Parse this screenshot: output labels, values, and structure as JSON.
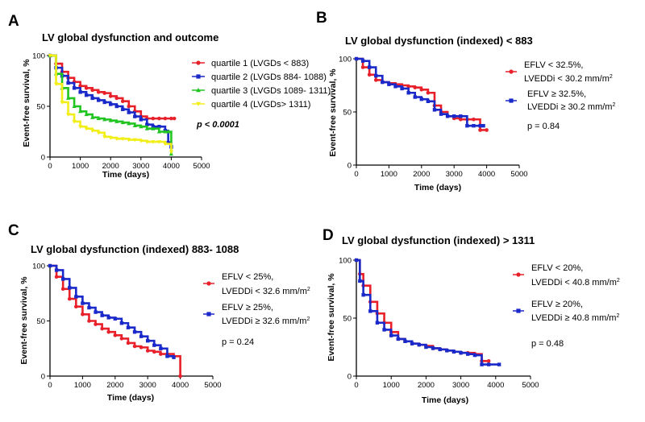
{
  "figure": {
    "panel_count": 4
  },
  "chart_data": [
    {
      "type": "line",
      "panel_letter": "A",
      "title": "LV global dysfunction and outcome",
      "xlabel": "Time (days)",
      "ylabel": "Event-free survival, %",
      "xlim": [
        0,
        5000
      ],
      "ylim": [
        0,
        100
      ],
      "x_ticks": [
        0,
        1000,
        2000,
        3000,
        4000,
        5000
      ],
      "y_ticks": [
        0,
        50,
        100
      ],
      "y_tick_labels": [
        "0",
        "50",
        "100"
      ],
      "p_value": "p < 0.0001",
      "p_value_style": "bold-italic",
      "legend": "right",
      "series": [
        {
          "name": "quartile 1 (LVGDs < 883)",
          "color": "#e8202a",
          "marker": "circle",
          "x": [
            0,
            200,
            400,
            600,
            800,
            1000,
            1200,
            1400,
            1600,
            1800,
            2000,
            2200,
            2400,
            2600,
            2800,
            3000,
            3200,
            3400,
            3600,
            3800,
            4000,
            4100
          ],
          "y": [
            100,
            92,
            84,
            78,
            74,
            70,
            68,
            66,
            64,
            63,
            60,
            58,
            55,
            50,
            45,
            40,
            38,
            38,
            38,
            38,
            38,
            38
          ]
        },
        {
          "name": "quartile 2 (LVGDs 884- 1088)",
          "color": "#1a29c9",
          "marker": "square",
          "x": [
            0,
            200,
            400,
            600,
            800,
            1000,
            1200,
            1400,
            1600,
            1800,
            2000,
            2200,
            2400,
            2600,
            2800,
            3000,
            3200,
            3400,
            3600,
            3800,
            3900,
            4000
          ],
          "y": [
            100,
            88,
            80,
            73,
            68,
            64,
            61,
            58,
            56,
            54,
            52,
            50,
            47,
            44,
            40,
            37,
            32,
            30,
            30,
            26,
            14,
            10
          ]
        },
        {
          "name": "quartile 3 (LVGDs 1089- 1311)",
          "color": "#22c422",
          "marker": "triangle",
          "x": [
            0,
            200,
            400,
            600,
            800,
            1000,
            1200,
            1400,
            1600,
            1800,
            2000,
            2200,
            2400,
            2600,
            2800,
            3000,
            3200,
            3400,
            3600,
            3800,
            3900,
            4000
          ],
          "y": [
            100,
            82,
            68,
            58,
            50,
            45,
            42,
            39,
            38,
            37,
            36,
            35,
            34,
            33,
            31,
            30,
            28,
            28,
            25,
            25,
            25,
            3
          ]
        },
        {
          "name": "quartile 4 (LVGDs> 1311)",
          "color": "#f2ee1a",
          "marker": "triangle-down",
          "x": [
            0,
            200,
            400,
            600,
            800,
            1000,
            1200,
            1400,
            1600,
            1800,
            2000,
            2200,
            2400,
            2600,
            2800,
            3000,
            3200,
            3400,
            3600,
            3800,
            4000
          ],
          "y": [
            100,
            72,
            54,
            42,
            35,
            30,
            28,
            26,
            24,
            20,
            19,
            18,
            18,
            17,
            17,
            16,
            15,
            15,
            15,
            13,
            5
          ]
        }
      ]
    },
    {
      "type": "line",
      "panel_letter": "B",
      "title": "LV global dysfunction (indexed) < 883",
      "xlabel": "Time (days)",
      "ylabel": "Event-free survival, %",
      "xlim": [
        0,
        5000
      ],
      "ylim": [
        0,
        100
      ],
      "x_ticks": [
        0,
        1000,
        2000,
        3000,
        4000,
        5000
      ],
      "y_ticks": [
        0,
        50,
        100
      ],
      "y_tick_labels": [
        "0",
        "50",
        "100"
      ],
      "p_value": "p = 0.84",
      "p_value_style": "normal",
      "legend": "right",
      "series": [
        {
          "name": "EFLV < 32.5%,",
          "name_line2": "LVEDDi < 30.2 mm/m",
          "name_sup": "2",
          "color": "#e8202a",
          "marker": "circle",
          "x": [
            0,
            200,
            400,
            600,
            800,
            1000,
            1200,
            1400,
            1600,
            1800,
            2000,
            2200,
            2400,
            2600,
            2800,
            3000,
            3200,
            3400,
            3600,
            3800,
            4000
          ],
          "y": [
            100,
            92,
            85,
            80,
            78,
            77,
            76,
            75,
            74,
            73,
            71,
            68,
            56,
            50,
            46,
            44,
            43,
            43,
            43,
            33,
            33
          ]
        },
        {
          "name": "EFLV ≥ 32.5%,",
          "name_line2": "LVEDDi ≥ 30.2 mm/m",
          "name_sup": "2",
          "color": "#1a29c9",
          "marker": "square",
          "x": [
            0,
            200,
            400,
            600,
            800,
            1000,
            1200,
            1400,
            1600,
            1800,
            2000,
            2200,
            2400,
            2600,
            2800,
            3000,
            3200,
            3400,
            3600,
            3800,
            3900
          ],
          "y": [
            100,
            98,
            92,
            84,
            78,
            76,
            74,
            72,
            68,
            64,
            62,
            60,
            52,
            48,
            46,
            46,
            46,
            37,
            37,
            37,
            37
          ]
        }
      ]
    },
    {
      "type": "line",
      "panel_letter": "C",
      "title": "LV global dysfunction (indexed)  883- 1088",
      "xlabel": "Time (days)",
      "ylabel": "Event-free survival, %",
      "xlim": [
        0,
        5000
      ],
      "ylim": [
        0,
        100
      ],
      "x_ticks": [
        0,
        1000,
        2000,
        3000,
        4000,
        5000
      ],
      "y_ticks": [
        0,
        50,
        100
      ],
      "y_tick_labels": [
        "0",
        "50",
        "100"
      ],
      "p_value": "p = 0.24",
      "p_value_style": "normal",
      "legend": "right",
      "series": [
        {
          "name": "EFLV < 25%,",
          "name_line2": "LVEDDi < 32.6 mm/m",
          "name_sup": "2",
          "color": "#e8202a",
          "marker": "circle",
          "x": [
            0,
            200,
            400,
            600,
            800,
            1000,
            1200,
            1400,
            1600,
            1800,
            2000,
            2200,
            2400,
            2600,
            2800,
            3000,
            3200,
            3400,
            3600,
            3800,
            4000
          ],
          "y": [
            100,
            90,
            79,
            70,
            63,
            56,
            50,
            47,
            43,
            40,
            37,
            34,
            30,
            27,
            26,
            23,
            22,
            20,
            20,
            18,
            0
          ]
        },
        {
          "name": "EFLV ≥ 25%,",
          "name_line2": "LVEDDi ≥ 32.6 mm/m",
          "name_sup": "2",
          "color": "#1a29c9",
          "marker": "square",
          "x": [
            0,
            200,
            400,
            600,
            800,
            1000,
            1200,
            1400,
            1600,
            1800,
            2000,
            2200,
            2400,
            2600,
            2800,
            3000,
            3200,
            3400,
            3600,
            3800
          ],
          "y": [
            100,
            96,
            88,
            80,
            72,
            66,
            62,
            58,
            55,
            53,
            52,
            48,
            44,
            40,
            36,
            32,
            28,
            25,
            18,
            17
          ]
        }
      ]
    },
    {
      "type": "line",
      "panel_letter": "D",
      "title": "LV global dysfunction (indexed) > 1311",
      "xlabel": "Time (days)",
      "ylabel": "Event-free survival, %",
      "xlim": [
        0,
        5000
      ],
      "ylim": [
        0,
        100
      ],
      "x_ticks": [
        0,
        1000,
        2000,
        3000,
        4000,
        5000
      ],
      "y_ticks": [
        0,
        50,
        100
      ],
      "y_tick_labels": [
        "0",
        "50",
        "100"
      ],
      "p_value": "p = 0.48",
      "p_value_style": "normal",
      "legend": "right",
      "series": [
        {
          "name": "EFLV < 20%,",
          "name_line2": "LVEDDi < 40.8 mm/m",
          "name_sup": "2",
          "color": "#e8202a",
          "marker": "circle",
          "x": [
            0,
            100,
            200,
            400,
            600,
            800,
            1000,
            1200,
            1400,
            1600,
            1800,
            2000,
            2200,
            2400,
            2600,
            2800,
            3000,
            3200,
            3400,
            3600,
            3800
          ],
          "y": [
            100,
            88,
            78,
            64,
            54,
            46,
            38,
            32,
            30,
            28,
            27,
            26,
            24,
            23,
            22,
            21,
            20,
            20,
            19,
            13,
            13
          ]
        },
        {
          "name": "EFLV ≥ 20%,",
          "name_line2": "LVEDDi ≥ 40.8 mm/m",
          "name_sup": "2",
          "color": "#1a29c9",
          "marker": "square",
          "x": [
            0,
            100,
            200,
            400,
            600,
            800,
            1000,
            1200,
            1400,
            1600,
            1800,
            2000,
            2200,
            2400,
            2600,
            2800,
            3000,
            3200,
            3400,
            3600,
            3800,
            4100
          ],
          "y": [
            100,
            82,
            70,
            56,
            46,
            40,
            35,
            32,
            30,
            28,
            27,
            25,
            24,
            23,
            22,
            21,
            20,
            19,
            18,
            10,
            10,
            10
          ]
        }
      ]
    }
  ]
}
